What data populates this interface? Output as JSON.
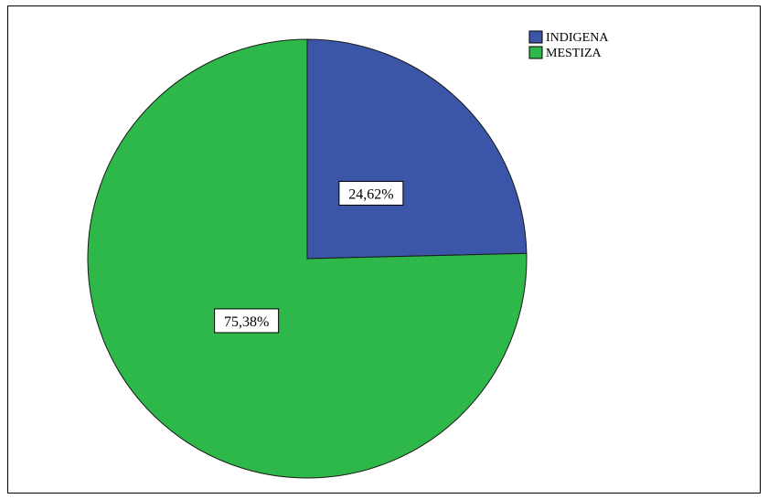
{
  "chart_data": {
    "type": "pie",
    "categories": [
      "INDIGENA",
      "MESTIZA"
    ],
    "values": [
      24.62,
      75.38
    ],
    "labels": [
      "24,62%",
      "75,38%"
    ],
    "colors": [
      "#3b55a9",
      "#2fb84a"
    ],
    "start_angle_deg": 0,
    "direction": "clockwise",
    "legend_position": "top-right"
  }
}
